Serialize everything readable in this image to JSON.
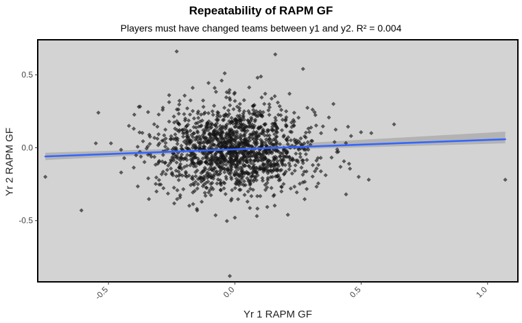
{
  "chart_data": {
    "type": "scatter",
    "title": "Repeatability of RAPM GF",
    "subtitle": "Players must have changed teams between y1 and y2. R² = 0.004",
    "xlabel": "Yr 1 RAPM GF",
    "ylabel": "Yr 2 RAPM GF",
    "xlim": [
      -0.78,
      1.12
    ],
    "ylim": [
      -0.92,
      0.74
    ],
    "x_ticks": [
      -0.5,
      0.0,
      0.5,
      1.0
    ],
    "x_tick_labels": [
      "-0.5",
      "0.0",
      "0.5",
      "1.0"
    ],
    "y_ticks": [
      -0.5,
      0.0,
      0.5
    ],
    "y_tick_labels": [
      "-0.5",
      "0.0",
      "0.5"
    ],
    "grid": false,
    "legend": "none",
    "colors": {
      "panel_background": "#d3d3d3",
      "points": "#1a1a1a",
      "trend_line": "#3366ff",
      "confidence_band": "#a8a8a8"
    },
    "trend_line": {
      "x": [
        -0.75,
        1.07
      ],
      "y": [
        -0.06,
        0.058
      ]
    },
    "confidence_band": {
      "x": [
        -0.75,
        0.0,
        1.07
      ],
      "lower": [
        -0.085,
        -0.022,
        0.03
      ],
      "upper": [
        -0.035,
        0.005,
        0.11
      ]
    },
    "points_summary": {
      "approx_count": 1500,
      "x_mean": 0.0,
      "x_sd": 0.155,
      "y_mean": -0.01,
      "y_sd": 0.15
    },
    "points": [
      [
        -0.75,
        -0.2
      ],
      [
        -0.54,
        0.24
      ],
      [
        -0.55,
        0.03
      ],
      [
        -0.49,
        0.03
      ],
      [
        -0.38,
        0.28
      ],
      [
        -0.23,
        0.66
      ],
      [
        0.16,
        0.64
      ],
      [
        -0.04,
        0.51
      ],
      [
        0.09,
        0.48
      ],
      [
        0.27,
        0.54
      ],
      [
        -0.02,
        -0.88
      ],
      [
        0.53,
        -0.22
      ],
      [
        0.63,
        0.16
      ],
      [
        1.07,
        -0.22
      ],
      [
        -0.4,
        0.13
      ],
      [
        -0.31,
        -0.3
      ],
      [
        0.39,
        0.3
      ],
      [
        0.49,
        -0.2
      ],
      [
        0.44,
        -0.32
      ],
      [
        0.0,
        -0.48
      ],
      [
        0.21,
        -0.46
      ],
      [
        -0.26,
        0.36
      ],
      [
        -0.08,
        0.41
      ],
      [
        0.12,
        0.37
      ],
      [
        0.34,
        -0.07
      ],
      [
        -0.45,
        -0.17
      ],
      [
        0.46,
        0.08
      ],
      [
        0.54,
        0.1
      ],
      [
        0.05,
        -0.37
      ],
      [
        -0.15,
        -0.42
      ]
    ]
  }
}
